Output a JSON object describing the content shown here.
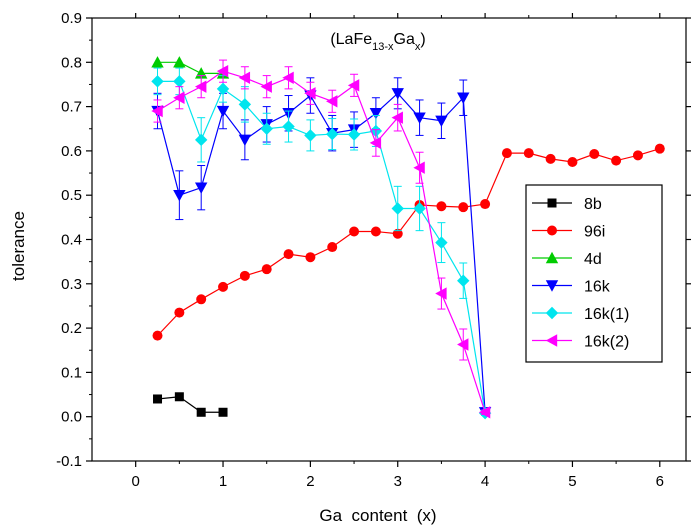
{
  "chart_data": {
    "type": "scatter",
    "title_parts": [
      "(LaFe",
      "13-x",
      "Ga",
      "x",
      ")"
    ],
    "xlabel": "Ga  content  (x)",
    "ylabel": "tolerance",
    "xlim": [
      -0.5,
      6.3
    ],
    "ylim": [
      -0.1,
      0.9
    ],
    "xticks": [
      0,
      1,
      2,
      3,
      4,
      5,
      6
    ],
    "yticks": [
      -0.1,
      0.0,
      0.1,
      0.2,
      0.3,
      0.4,
      0.5,
      0.6,
      0.7,
      0.8,
      0.9
    ],
    "xtick_labels": [
      "0",
      "1",
      "2",
      "3",
      "4",
      "5",
      "6"
    ],
    "ytick_labels": [
      "-0.1",
      "0.0",
      "0.1",
      "0.2",
      "0.3",
      "0.4",
      "0.5",
      "0.6",
      "0.7",
      "0.8",
      "0.9"
    ],
    "grid": false,
    "legend_position": "right",
    "series": [
      {
        "name": "8b",
        "color": "#000000",
        "marker": "square",
        "x": [
          0.25,
          0.5,
          0.75,
          1.0
        ],
        "y": [
          0.04,
          0.045,
          0.01,
          0.01
        ]
      },
      {
        "name": "96i",
        "color": "#ff0000",
        "marker": "circle",
        "x": [
          0.25,
          0.5,
          0.75,
          1.0,
          1.25,
          1.5,
          1.75,
          2.0,
          2.25,
          2.5,
          2.75,
          3.0,
          3.25,
          3.5,
          3.75,
          4.0,
          4.25,
          4.5,
          4.75,
          5.0,
          5.25,
          5.5,
          5.75,
          6.0
        ],
        "y": [
          0.183,
          0.235,
          0.265,
          0.293,
          0.318,
          0.333,
          0.367,
          0.36,
          0.383,
          0.418,
          0.418,
          0.413,
          0.478,
          0.475,
          0.473,
          0.48,
          0.595,
          0.595,
          0.582,
          0.575,
          0.593,
          0.578,
          0.59,
          0.605
        ]
      },
      {
        "name": "4d",
        "color": "#00cc00",
        "marker": "triangle-up",
        "x": [
          0.25,
          0.5,
          0.75,
          1.0
        ],
        "y": [
          0.8,
          0.8,
          0.775,
          0.775
        ]
      },
      {
        "name": "16k",
        "color": "#0000ff",
        "marker": "triangle-down",
        "x": [
          0.25,
          0.5,
          0.75,
          1.0,
          1.25,
          1.5,
          1.75,
          2.0,
          2.25,
          2.5,
          2.75,
          3.0,
          3.25,
          3.5,
          3.75,
          4.0
        ],
        "y": [
          0.69,
          0.5,
          0.517,
          0.69,
          0.625,
          0.66,
          0.685,
          0.725,
          0.64,
          0.648,
          0.685,
          0.73,
          0.675,
          0.668,
          0.72,
          0.01
        ],
        "err": [
          0.04,
          0.055,
          0.05,
          0.04,
          0.045,
          0.04,
          0.04,
          0.04,
          0.04,
          0.04,
          0.035,
          0.035,
          0.04,
          0.04,
          0.04,
          0.005
        ]
      },
      {
        "name": "16k(1)",
        "color": "#00e5ee",
        "marker": "diamond",
        "x": [
          0.25,
          0.5,
          0.75,
          1.0,
          1.25,
          1.5,
          1.75,
          2.0,
          2.25,
          2.5,
          2.75,
          3.0,
          3.25,
          3.5,
          3.75,
          4.0
        ],
        "y": [
          0.757,
          0.757,
          0.625,
          0.74,
          0.705,
          0.65,
          0.655,
          0.635,
          0.638,
          0.637,
          0.645,
          0.47,
          0.47,
          0.393,
          0.307,
          0.008
        ],
        "err": [
          0.03,
          0.03,
          0.05,
          0.03,
          0.04,
          0.035,
          0.035,
          0.035,
          0.035,
          0.035,
          0.035,
          0.05,
          0.05,
          0.045,
          0.04,
          0.005
        ]
      },
      {
        "name": "16k(2)",
        "color": "#ff00ff",
        "marker": "triangle-left",
        "x": [
          0.25,
          0.5,
          0.75,
          1.0,
          1.25,
          1.5,
          1.75,
          2.0,
          2.25,
          2.5,
          2.75,
          3.0,
          3.25,
          3.5,
          3.75,
          4.0
        ],
        "y": [
          0.69,
          0.72,
          0.745,
          0.78,
          0.765,
          0.745,
          0.765,
          0.73,
          0.712,
          0.748,
          0.618,
          0.675,
          0.562,
          0.278,
          0.163,
          0.01
        ],
        "err": [
          0.025,
          0.025,
          0.025,
          0.025,
          0.025,
          0.025,
          0.025,
          0.025,
          0.025,
          0.025,
          0.03,
          0.03,
          0.035,
          0.035,
          0.035,
          0.005
        ]
      }
    ]
  }
}
